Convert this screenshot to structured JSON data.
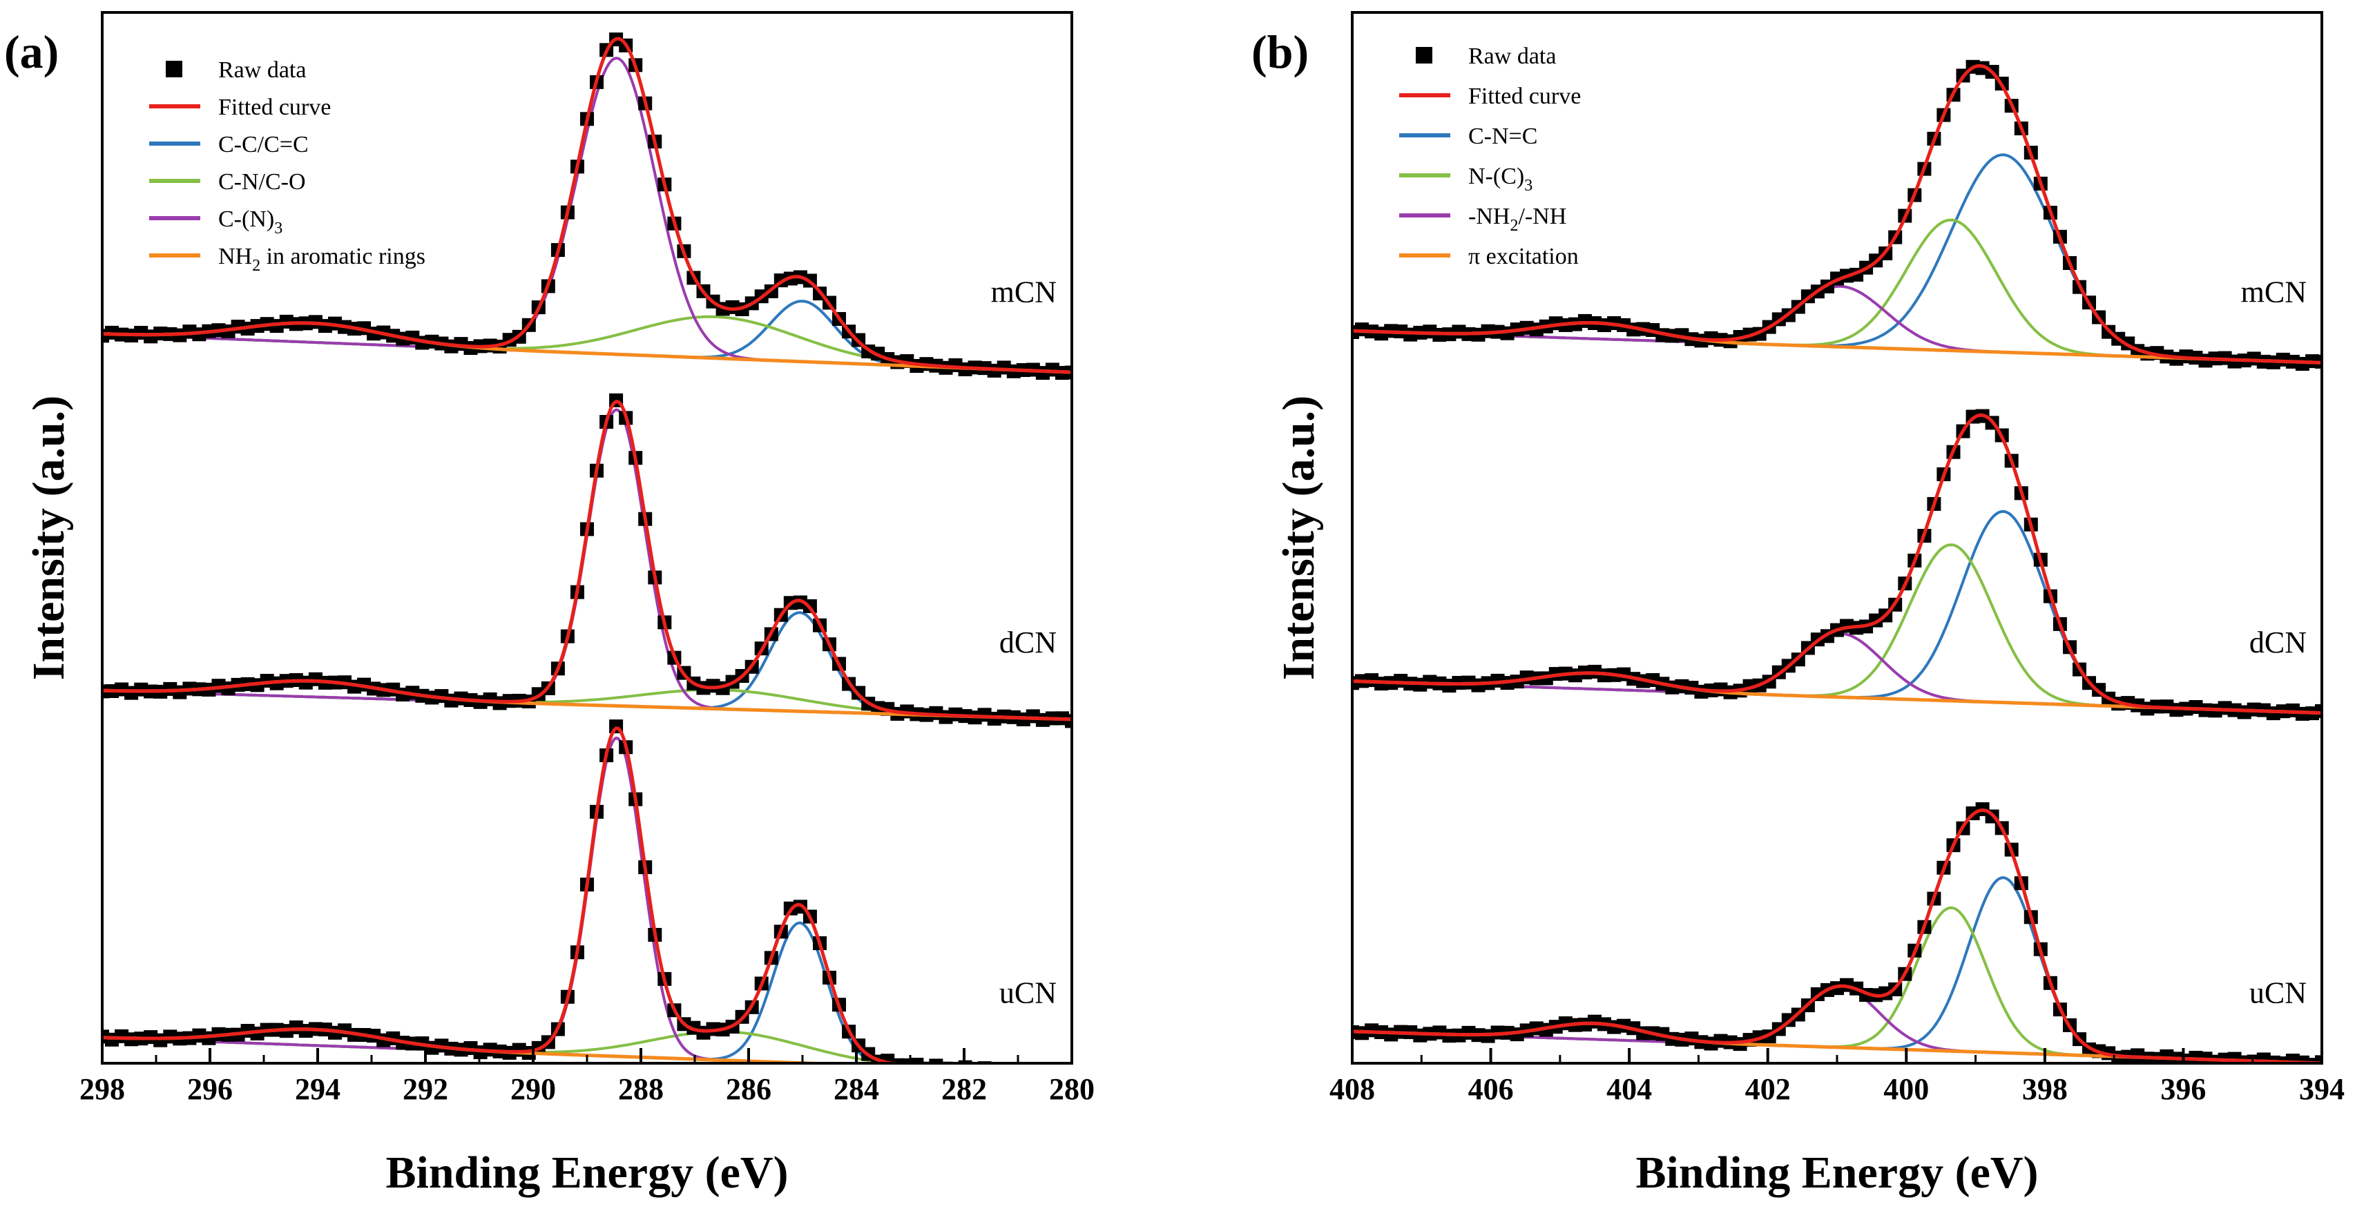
{
  "chart_data": [
    {
      "panel_label": "(a)",
      "type": "line",
      "xlabel": "Binding Energy (eV)",
      "ylabel": "Intensity (a.u.)",
      "xlim": [
        298,
        280
      ],
      "x_reversed": true,
      "x_ticks": [
        "298",
        "296",
        "294",
        "292",
        "290",
        "288",
        "286",
        "284",
        "282",
        "280"
      ],
      "ylim": [
        0,
        3.3
      ],
      "y_ticks_shown": false,
      "legend": [
        {
          "label": "Raw data",
          "marker": "square",
          "color": "#000000"
        },
        {
          "label": "Fitted curve",
          "color": "#e8211c"
        },
        {
          "label": "C-C/C=C",
          "color": "#2e78bd"
        },
        {
          "label": "C-N/C-O",
          "color": "#85bf45"
        },
        {
          "label": "C-(N)",
          "sub": "3",
          "rest": "",
          "color": "#9a3cae"
        },
        {
          "label": "NH",
          "sub": "2",
          "rest": " in aromatic rings",
          "color": "#f58a1f"
        }
      ],
      "series": [
        {
          "sample": "mCN",
          "offset": 2.2,
          "baseline": [
            0.09,
            -0.03
          ],
          "pi_bump": {
            "center": 294.1,
            "height": 0.06,
            "sigma": 1.3
          },
          "peaks": [
            {
              "component": "C-C/C=C",
              "center": 285.0,
              "height": 0.19,
              "sigma": 0.6
            },
            {
              "component": "C-N/C-O",
              "center": 286.6,
              "height": 0.13,
              "sigma": 1.5
            },
            {
              "component": "C-(N)3",
              "center": 288.45,
              "height": 0.93,
              "sigma": 0.72
            }
          ]
        },
        {
          "sample": "dCN",
          "offset": 1.1,
          "baseline": [
            0.07,
            -0.02
          ],
          "pi_bump": {
            "center": 294.1,
            "height": 0.05,
            "sigma": 1.3
          },
          "peaks": [
            {
              "component": "C-C/C=C",
              "center": 285.05,
              "height": 0.31,
              "sigma": 0.55
            },
            {
              "component": "C-N/C-O",
              "center": 286.5,
              "height": 0.06,
              "sigma": 1.5
            },
            {
              "component": "C-(N)3",
              "center": 288.45,
              "height": 0.93,
              "sigma": 0.52
            }
          ]
        },
        {
          "sample": "uCN",
          "offset": 0.0,
          "baseline": [
            0.08,
            -0.03
          ],
          "pi_bump": {
            "center": 294.1,
            "height": 0.05,
            "sigma": 1.3
          },
          "peaks": [
            {
              "component": "C-C/C=C",
              "center": 285.05,
              "height": 0.44,
              "sigma": 0.5
            },
            {
              "component": "C-N/C-O",
              "center": 286.4,
              "height": 0.09,
              "sigma": 1.4
            },
            {
              "component": "C-(N)3",
              "center": 288.45,
              "height": 1.0,
              "sigma": 0.48
            }
          ]
        }
      ]
    },
    {
      "panel_label": "(b)",
      "type": "line",
      "xlabel": "Binding Energy (eV)",
      "ylabel": "Intensity (a.u.)",
      "xlim": [
        408,
        394
      ],
      "x_reversed": true,
      "x_ticks": [
        "408",
        "406",
        "404",
        "402",
        "400",
        "398",
        "396",
        "394"
      ],
      "ylim": [
        0,
        3.3
      ],
      "y_ticks_shown": false,
      "legend": [
        {
          "label": "Raw data",
          "marker": "square",
          "color": "#000000"
        },
        {
          "label": "Fitted curve",
          "color": "#e8211c"
        },
        {
          "label": "C-N=C",
          "color": "#2e78bd"
        },
        {
          "label": "N-(C)",
          "sub": "3",
          "rest": "",
          "color": "#85bf45"
        },
        {
          "label": "-NH",
          "sub": "2",
          "rest": "/-NH",
          "color": "#9a3cae"
        },
        {
          "label": "π excitation",
          "color": "#f58a1f"
        }
      ],
      "series": [
        {
          "sample": "mCN",
          "offset": 2.2,
          "baseline": [
            0.1,
            0.0
          ],
          "pi_bump": {
            "center": 404.5,
            "height": 0.05,
            "sigma": 0.8
          },
          "peaks": [
            {
              "component": "C-N=C",
              "center": 398.6,
              "height": 0.62,
              "sigma": 0.75
            },
            {
              "component": "N-(C)3",
              "center": 399.35,
              "height": 0.41,
              "sigma": 0.65
            },
            {
              "component": "-NH2/-NH",
              "center": 400.95,
              "height": 0.19,
              "sigma": 0.65
            }
          ]
        },
        {
          "sample": "dCN",
          "offset": 1.1,
          "baseline": [
            0.1,
            0.0
          ],
          "pi_bump": {
            "center": 404.5,
            "height": 0.05,
            "sigma": 0.8
          },
          "peaks": [
            {
              "component": "C-N=C",
              "center": 398.6,
              "height": 0.6,
              "sigma": 0.6
            },
            {
              "component": "N-(C)3",
              "center": 399.35,
              "height": 0.49,
              "sigma": 0.6
            },
            {
              "component": "-NH2/-NH",
              "center": 400.95,
              "height": 0.2,
              "sigma": 0.6
            }
          ]
        },
        {
          "sample": "uCN",
          "offset": 0.0,
          "baseline": [
            0.1,
            0.0
          ],
          "pi_bump": {
            "center": 404.5,
            "height": 0.05,
            "sigma": 0.7
          },
          "peaks": [
            {
              "component": "C-N=C",
              "center": 398.6,
              "height": 0.55,
              "sigma": 0.5
            },
            {
              "component": "N-(C)3",
              "center": 399.35,
              "height": 0.45,
              "sigma": 0.5
            },
            {
              "component": "-NH2/-NH",
              "center": 400.95,
              "height": 0.19,
              "sigma": 0.55
            }
          ]
        }
      ]
    }
  ]
}
